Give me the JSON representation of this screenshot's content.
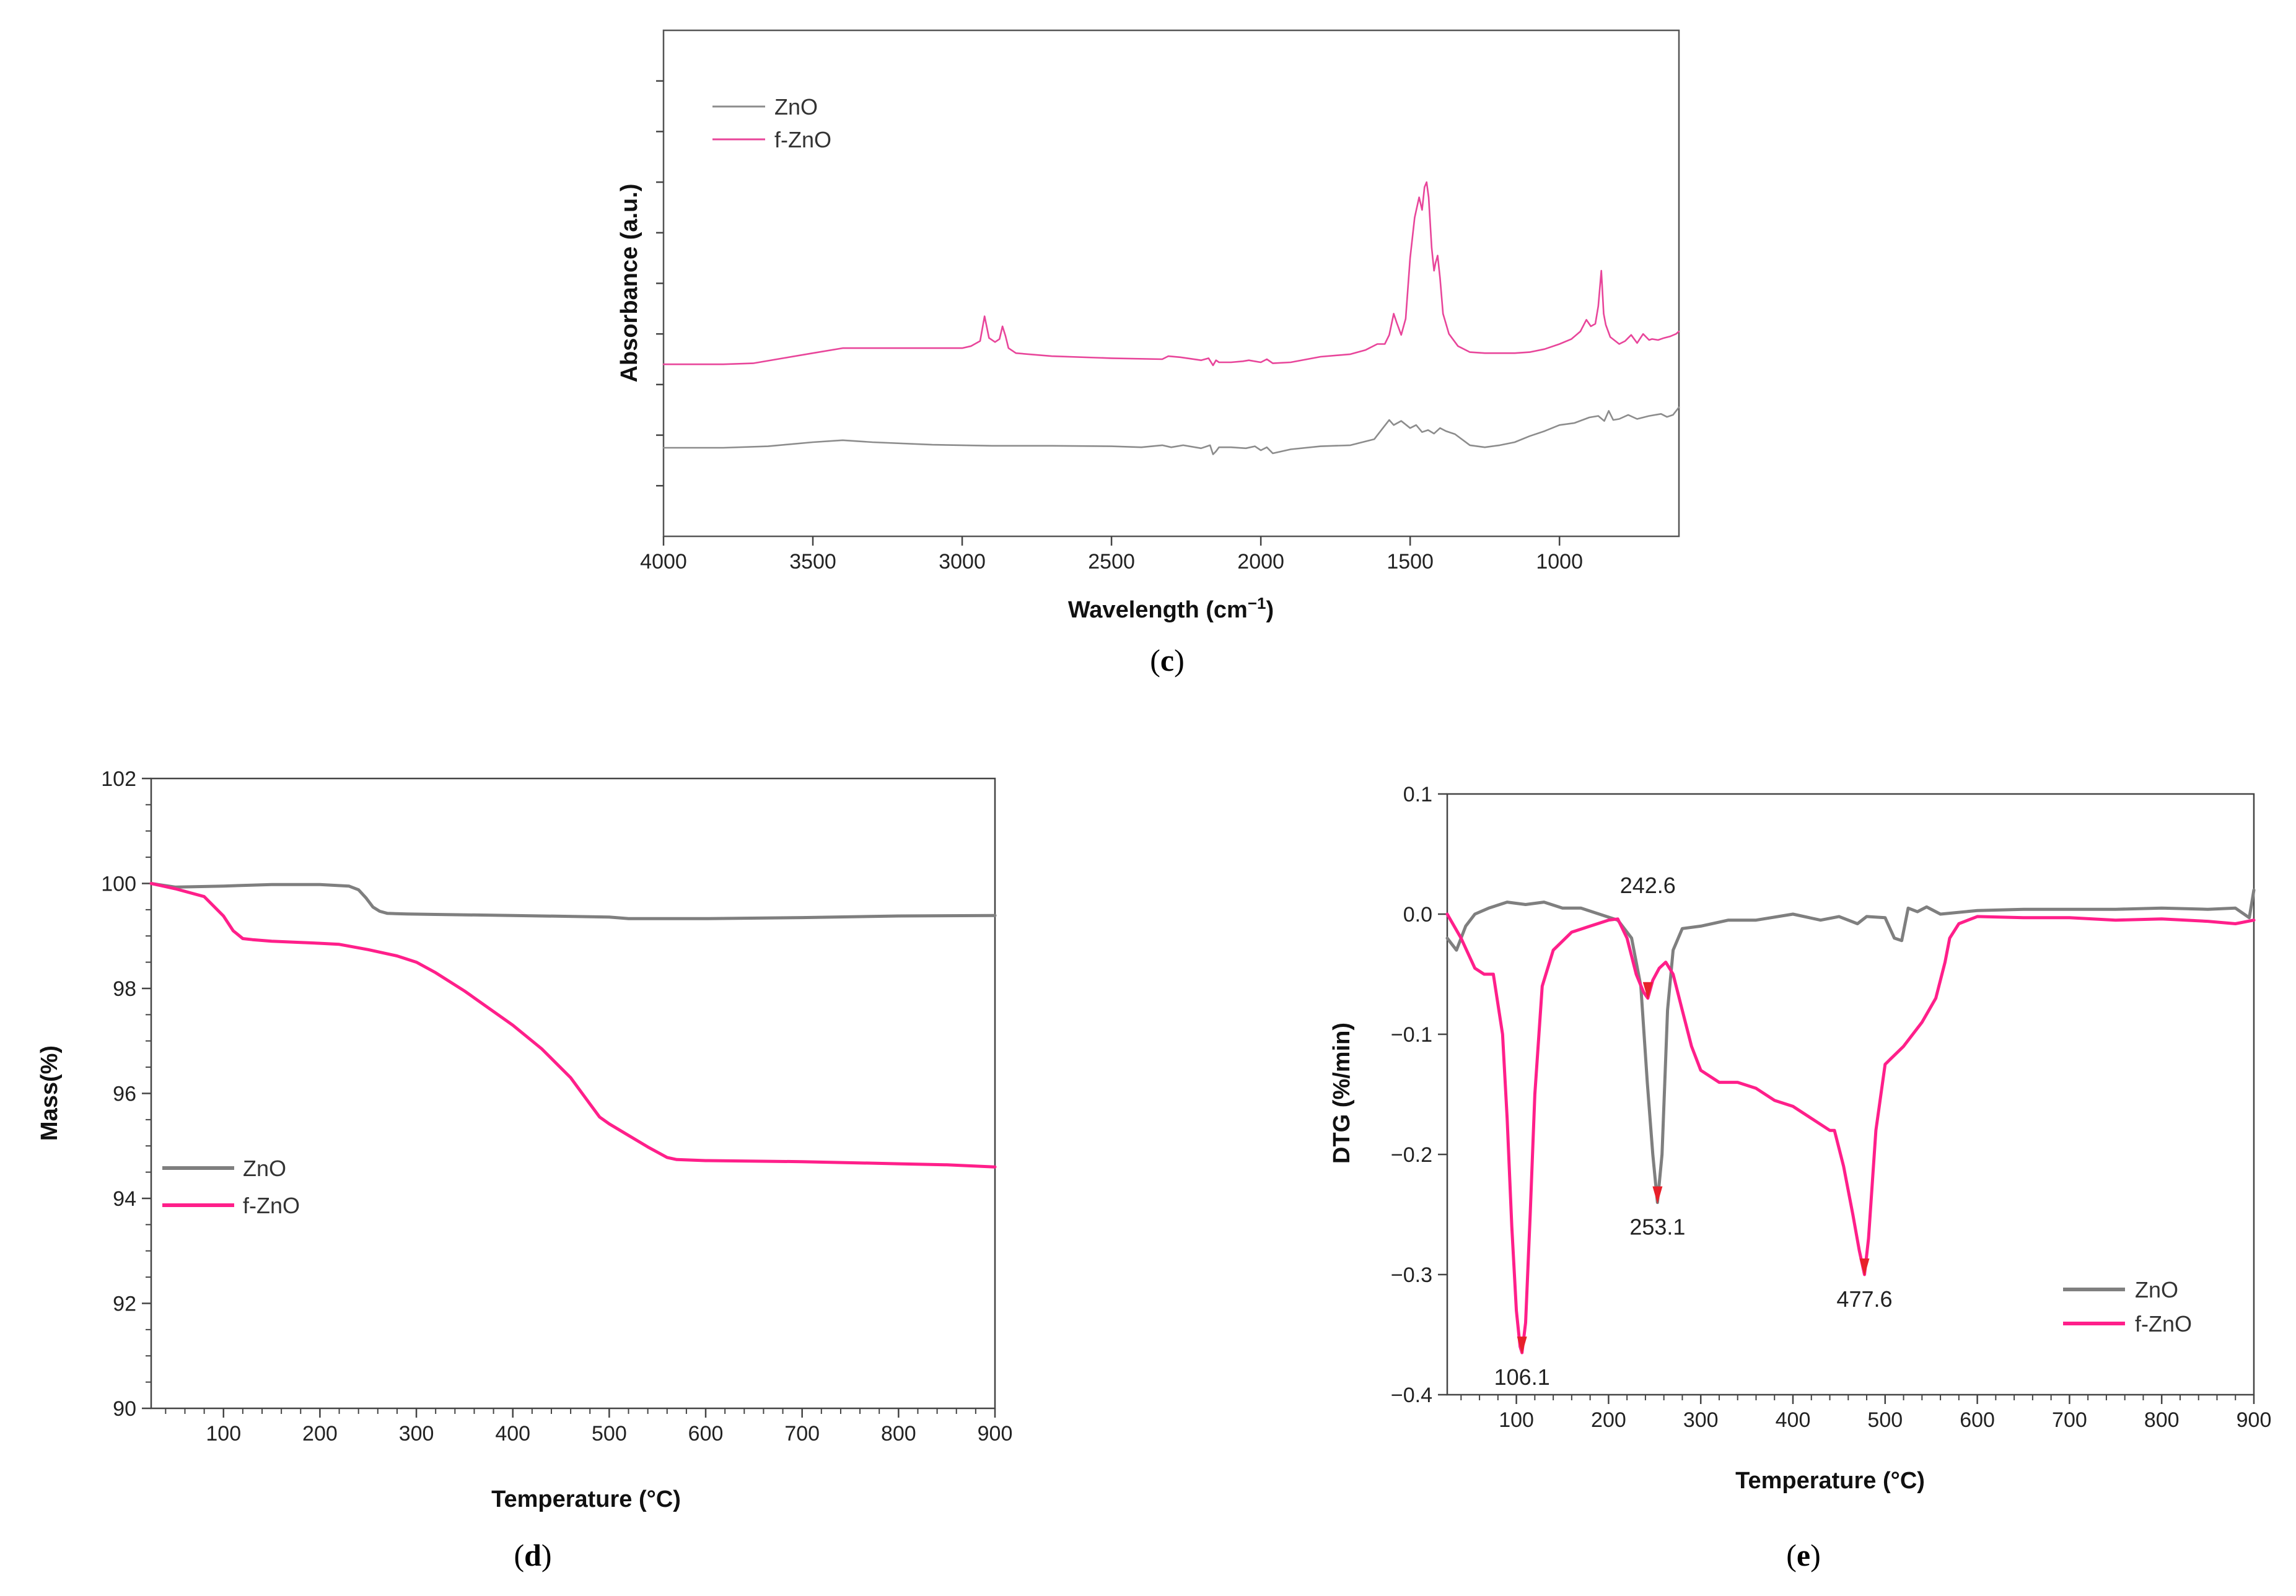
{
  "chart_data": [
    {
      "panel": "c",
      "type": "line",
      "title": "",
      "xlabel": "Wavelength (cm",
      "xlabel_sup": "−1",
      "xlabel_close": ")",
      "ylabel": "Absorbance (a.u.)",
      "xlim": [
        4000,
        600
      ],
      "ylim": [
        0,
        10
      ],
      "grid": false,
      "legend_position": "top-left",
      "x_ticks": [
        "4000",
        "3500",
        "3000",
        "2500",
        "2000",
        "1500",
        "1000"
      ],
      "x_tick_values": [
        4000,
        3500,
        3000,
        2500,
        2000,
        1500,
        1000
      ],
      "y_ticks_unlabeled": [
        1,
        2,
        3,
        4,
        5,
        6,
        7,
        8,
        9
      ],
      "series": [
        {
          "name": "ZnO",
          "color": "#8c8c8c",
          "x": [
            4000,
            3800,
            3650,
            3500,
            3400,
            3300,
            3100,
            2900,
            2700,
            2500,
            2400,
            2330,
            2300,
            2260,
            2200,
            2170,
            2160,
            2150,
            2140,
            2100,
            2050,
            2020,
            2000,
            1980,
            1960,
            1900,
            1800,
            1700,
            1620,
            1590,
            1570,
            1555,
            1530,
            1500,
            1480,
            1460,
            1440,
            1420,
            1400,
            1380,
            1350,
            1300,
            1250,
            1200,
            1150,
            1100,
            1050,
            1000,
            950,
            900,
            870,
            850,
            835,
            820,
            800,
            770,
            740,
            700,
            660,
            640,
            620,
            600
          ],
          "y": [
            1.75,
            1.75,
            1.78,
            1.86,
            1.9,
            1.86,
            1.81,
            1.79,
            1.79,
            1.78,
            1.76,
            1.8,
            1.76,
            1.8,
            1.74,
            1.8,
            1.62,
            1.68,
            1.76,
            1.76,
            1.74,
            1.78,
            1.7,
            1.76,
            1.64,
            1.72,
            1.78,
            1.8,
            1.92,
            2.15,
            2.3,
            2.2,
            2.28,
            2.14,
            2.2,
            2.06,
            2.1,
            2.03,
            2.14,
            2.08,
            2.02,
            1.8,
            1.76,
            1.8,
            1.86,
            1.98,
            2.08,
            2.2,
            2.24,
            2.35,
            2.38,
            2.28,
            2.48,
            2.3,
            2.32,
            2.4,
            2.32,
            2.38,
            2.42,
            2.36,
            2.4,
            2.55
          ]
        },
        {
          "name": "f-ZnO",
          "color": "#e8459a",
          "x": [
            4000,
            3800,
            3700,
            3600,
            3500,
            3400,
            3300,
            3100,
            3000,
            2970,
            2940,
            2925,
            2910,
            2890,
            2875,
            2865,
            2855,
            2845,
            2820,
            2700,
            2500,
            2330,
            2310,
            2270,
            2200,
            2175,
            2160,
            2150,
            2140,
            2100,
            2060,
            2040,
            2000,
            1980,
            1960,
            1900,
            1800,
            1700,
            1650,
            1610,
            1585,
            1570,
            1555,
            1545,
            1530,
            1515,
            1500,
            1485,
            1470,
            1460,
            1452,
            1445,
            1438,
            1428,
            1420,
            1415,
            1408,
            1400,
            1390,
            1370,
            1340,
            1300,
            1250,
            1200,
            1150,
            1100,
            1050,
            1000,
            960,
            930,
            910,
            895,
            880,
            870,
            860,
            852,
            845,
            830,
            800,
            780,
            760,
            740,
            720,
            700,
            690,
            670,
            650,
            630,
            610,
            600
          ],
          "y": [
            3.4,
            3.4,
            3.42,
            3.52,
            3.62,
            3.72,
            3.72,
            3.72,
            3.72,
            3.76,
            3.86,
            4.35,
            3.92,
            3.84,
            3.9,
            4.15,
            3.96,
            3.72,
            3.62,
            3.56,
            3.52,
            3.5,
            3.56,
            3.54,
            3.48,
            3.52,
            3.38,
            3.48,
            3.44,
            3.44,
            3.46,
            3.48,
            3.44,
            3.5,
            3.42,
            3.44,
            3.55,
            3.6,
            3.68,
            3.8,
            3.8,
            3.98,
            4.4,
            4.22,
            3.98,
            4.3,
            5.5,
            6.3,
            6.7,
            6.45,
            6.9,
            7.0,
            6.7,
            5.7,
            5.25,
            5.4,
            5.55,
            5.1,
            4.4,
            4.0,
            3.76,
            3.64,
            3.62,
            3.62,
            3.62,
            3.64,
            3.7,
            3.8,
            3.9,
            4.05,
            4.28,
            4.15,
            4.2,
            4.55,
            5.25,
            4.4,
            4.18,
            3.94,
            3.8,
            3.86,
            3.98,
            3.82,
            4.0,
            3.88,
            3.9,
            3.88,
            3.92,
            3.95,
            4.0,
            4.05
          ]
        }
      ]
    },
    {
      "panel": "d",
      "type": "line",
      "title": "",
      "xlabel": "Temperature (°C)",
      "ylabel": "Mass(%)",
      "xlim": [
        25,
        900
      ],
      "ylim": [
        90,
        102
      ],
      "grid": false,
      "legend_position": "bottom-left",
      "x_ticks": [
        "100",
        "200",
        "300",
        "400",
        "500",
        "600",
        "700",
        "800",
        "900"
      ],
      "x_tick_values": [
        100,
        200,
        300,
        400,
        500,
        600,
        700,
        800,
        900
      ],
      "y_ticks": [
        "90",
        "92",
        "94",
        "96",
        "98",
        "100",
        "102"
      ],
      "y_tick_values": [
        90,
        92,
        94,
        96,
        98,
        100,
        102
      ],
      "series": [
        {
          "name": "ZnO",
          "color": "#7f7f7f",
          "x": [
            25,
            50,
            100,
            150,
            200,
            230,
            240,
            248,
            255,
            262,
            270,
            290,
            320,
            400,
            500,
            520,
            550,
            600,
            700,
            800,
            900
          ],
          "y": [
            100.0,
            99.93,
            99.95,
            99.98,
            99.98,
            99.95,
            99.88,
            99.72,
            99.55,
            99.47,
            99.43,
            99.42,
            99.41,
            99.39,
            99.36,
            99.33,
            99.33,
            99.33,
            99.35,
            99.38,
            99.39
          ]
        },
        {
          "name": "f-ZnO",
          "color": "#ff1f8a",
          "x": [
            25,
            50,
            80,
            100,
            110,
            120,
            130,
            150,
            200,
            220,
            250,
            280,
            300,
            320,
            350,
            400,
            430,
            460,
            480,
            490,
            500,
            520,
            540,
            560,
            570,
            600,
            700,
            800,
            850,
            900
          ],
          "y": [
            100.0,
            99.9,
            99.75,
            99.38,
            99.1,
            98.95,
            98.93,
            98.9,
            98.86,
            98.84,
            98.74,
            98.62,
            98.5,
            98.3,
            97.95,
            97.3,
            96.85,
            96.3,
            95.8,
            95.55,
            95.42,
            95.2,
            94.98,
            94.78,
            94.74,
            94.72,
            94.7,
            94.66,
            94.64,
            94.6
          ]
        }
      ]
    },
    {
      "panel": "e",
      "type": "line",
      "title": "",
      "xlabel": "Temperature (°C)",
      "ylabel": "DTG (%/min)",
      "xlim": [
        25,
        900
      ],
      "ylim": [
        -0.4,
        0.1
      ],
      "grid": false,
      "legend_position": "bottom-right",
      "x_ticks": [
        "100",
        "200",
        "300",
        "400",
        "500",
        "600",
        "700",
        "800",
        "900"
      ],
      "x_tick_values": [
        100,
        200,
        300,
        400,
        500,
        600,
        700,
        800,
        900
      ],
      "y_ticks": [
        "0.1",
        "0.0",
        "−0.1",
        "−0.2",
        "−0.3",
        "−0.4"
      ],
      "y_tick_values": [
        0.1,
        0.0,
        -0.1,
        -0.2,
        -0.3,
        -0.4
      ],
      "annotations": [
        {
          "text": "242.6",
          "x": 242.6,
          "y": -0.07,
          "position": "above"
        },
        {
          "text": "253.1",
          "x": 253.1,
          "y": -0.24,
          "position": "below"
        },
        {
          "text": "106.1",
          "x": 106.1,
          "y": -0.365,
          "position": "below"
        },
        {
          "text": "477.6",
          "x": 477.6,
          "y": -0.3,
          "position": "below"
        }
      ],
      "marker_color": "#e8202a",
      "series": [
        {
          "name": "ZnO",
          "color": "#7f7f7f",
          "x": [
            25,
            35,
            45,
            55,
            70,
            90,
            110,
            130,
            150,
            170,
            190,
            210,
            225,
            235,
            242,
            248,
            253,
            258,
            264,
            270,
            280,
            300,
            330,
            360,
            400,
            430,
            450,
            470,
            480,
            500,
            510,
            518,
            525,
            535,
            545,
            560,
            600,
            650,
            700,
            750,
            800,
            850,
            880,
            895,
            900
          ],
          "y": [
            -0.02,
            -0.03,
            -0.01,
            0.0,
            0.005,
            0.01,
            0.008,
            0.01,
            0.005,
            0.005,
            0.0,
            -0.005,
            -0.02,
            -0.06,
            -0.14,
            -0.2,
            -0.24,
            -0.2,
            -0.08,
            -0.03,
            -0.012,
            -0.01,
            -0.005,
            -0.005,
            0.0,
            -0.005,
            -0.002,
            -0.008,
            -0.002,
            -0.003,
            -0.02,
            -0.022,
            0.005,
            0.002,
            0.006,
            0.0,
            0.003,
            0.004,
            0.004,
            0.004,
            0.005,
            0.004,
            0.005,
            -0.003,
            0.02
          ]
        },
        {
          "name": "f-ZnO",
          "color": "#ff1f8a",
          "x": [
            25,
            40,
            55,
            65,
            75,
            85,
            90,
            95,
            100,
            104,
            106.1,
            110,
            115,
            120,
            128,
            140,
            160,
            180,
            200,
            210,
            220,
            230,
            238,
            242.6,
            248,
            255,
            262,
            270,
            280,
            290,
            300,
            320,
            340,
            360,
            380,
            400,
            420,
            440,
            445,
            455,
            465,
            472,
            477.6,
            482,
            490,
            500,
            520,
            540,
            555,
            565,
            570,
            580,
            600,
            650,
            700,
            750,
            800,
            850,
            880,
            900
          ],
          "y": [
            0.0,
            -0.02,
            -0.045,
            -0.05,
            -0.05,
            -0.1,
            -0.17,
            -0.26,
            -0.33,
            -0.36,
            -0.365,
            -0.34,
            -0.25,
            -0.15,
            -0.06,
            -0.03,
            -0.015,
            -0.01,
            -0.005,
            -0.004,
            -0.02,
            -0.05,
            -0.065,
            -0.07,
            -0.055,
            -0.045,
            -0.04,
            -0.05,
            -0.08,
            -0.11,
            -0.13,
            -0.14,
            -0.14,
            -0.145,
            -0.155,
            -0.16,
            -0.17,
            -0.18,
            -0.18,
            -0.21,
            -0.25,
            -0.28,
            -0.3,
            -0.27,
            -0.18,
            -0.125,
            -0.11,
            -0.09,
            -0.07,
            -0.04,
            -0.02,
            -0.008,
            -0.002,
            -0.003,
            -0.003,
            -0.005,
            -0.004,
            -0.006,
            -0.008,
            -0.005
          ]
        }
      ]
    }
  ],
  "panel_labels": [
    "c",
    "d",
    "e"
  ]
}
